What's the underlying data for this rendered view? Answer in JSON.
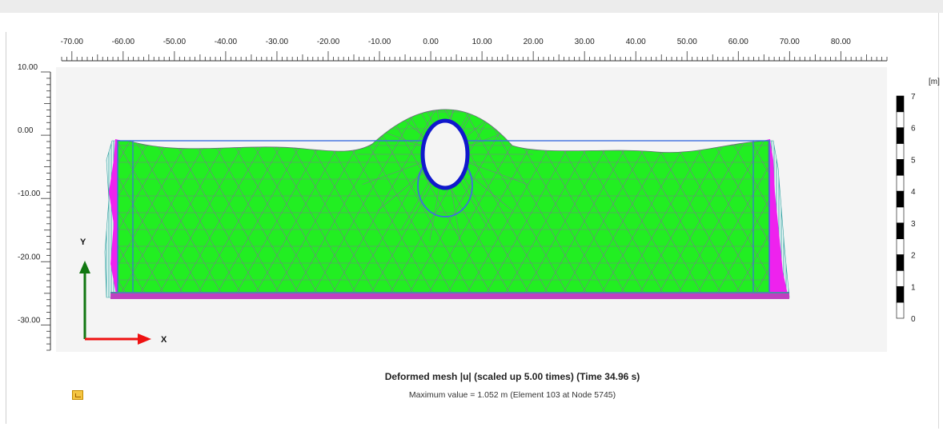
{
  "view": {
    "x_ticks": [
      "-70.00",
      "-60.00",
      "-50.00",
      "-40.00",
      "-30.00",
      "-20.00",
      "-10.00",
      "0.00",
      "10.00",
      "20.00",
      "30.00",
      "40.00",
      "50.00",
      "60.00",
      "70.00",
      "80.00"
    ],
    "y_ticks": [
      "10.00",
      "0.00",
      "-10.00",
      "-20.00",
      "-30.00"
    ],
    "axis_labels": {
      "x": "X",
      "y": "Y"
    }
  },
  "scale_bar": {
    "unit": "[m]",
    "labels": [
      "7",
      "6",
      "5",
      "4",
      "3",
      "2",
      "1",
      "0"
    ]
  },
  "caption": {
    "title": "Deformed mesh |u| (scaled up 5.00 times) (Time 34.96 s)",
    "subtitle": "Maximum value = 1.052 m (Element 103 at Node 5745)"
  },
  "colors": {
    "mesh_fill": "#22ee22",
    "mesh_line": "#7a7a8c",
    "boundary_magenta": "#ee22ee",
    "tunnel": "#1018cc",
    "x_axis_arrow": "#ee1111",
    "y_axis_arrow": "#117711"
  },
  "icons": {
    "legend": "legend-icon"
  }
}
